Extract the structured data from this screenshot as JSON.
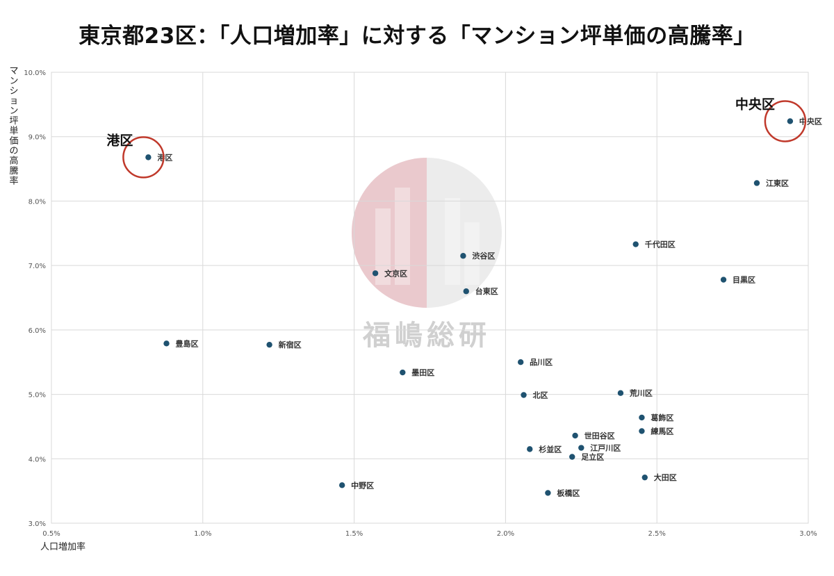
{
  "title": "東京都23区：「人口増加率」に対する「マンション坪単価の高騰率」",
  "watermark": "福嶋総研",
  "colors": {
    "point": "#1f5270",
    "grid": "#d9d9d9",
    "highlight": "#c0392b",
    "watermark_red": "#e8a0a8",
    "watermark_gray": "#c8c8c8"
  },
  "callouts": [
    {
      "target": "港区",
      "text": "港区"
    },
    {
      "target": "中央区",
      "text": "中央区"
    }
  ],
  "chart_data": {
    "type": "scatter",
    "xlabel": "人口増加率",
    "ylabel": "マンション坪単価の高騰率",
    "xlim": [
      0.5,
      3.0
    ],
    "ylim": [
      3.0,
      10.0
    ],
    "xticks": [
      0.5,
      1.0,
      1.5,
      2.0,
      2.5,
      3.0
    ],
    "yticks": [
      3.0,
      4.0,
      5.0,
      6.0,
      7.0,
      8.0,
      9.0,
      10.0
    ],
    "xtick_labels": [
      "0.5%",
      "1.0%",
      "1.5%",
      "2.0%",
      "2.5%",
      "3.0%"
    ],
    "ytick_labels": [
      "3.0%",
      "4.0%",
      "5.0%",
      "6.0%",
      "7.0%",
      "8.0%",
      "9.0%",
      "10.0%"
    ],
    "grid": true,
    "points": [
      {
        "label": "港区",
        "x": 0.82,
        "y": 8.68
      },
      {
        "label": "中央区",
        "x": 2.94,
        "y": 9.24
      },
      {
        "label": "江東区",
        "x": 2.83,
        "y": 8.28
      },
      {
        "label": "千代田区",
        "x": 2.43,
        "y": 7.33
      },
      {
        "label": "渋谷区",
        "x": 1.86,
        "y": 7.15
      },
      {
        "label": "文京区",
        "x": 1.57,
        "y": 6.88
      },
      {
        "label": "目黒区",
        "x": 2.72,
        "y": 6.78
      },
      {
        "label": "台東区",
        "x": 1.87,
        "y": 6.6
      },
      {
        "label": "豊島区",
        "x": 0.88,
        "y": 5.79
      },
      {
        "label": "新宿区",
        "x": 1.22,
        "y": 5.77
      },
      {
        "label": "品川区",
        "x": 2.05,
        "y": 5.5
      },
      {
        "label": "墨田区",
        "x": 1.66,
        "y": 5.34
      },
      {
        "label": "荒川区",
        "x": 2.38,
        "y": 5.02
      },
      {
        "label": "北区",
        "x": 2.06,
        "y": 4.99
      },
      {
        "label": "葛飾区",
        "x": 2.45,
        "y": 4.64
      },
      {
        "label": "練馬区",
        "x": 2.45,
        "y": 4.43
      },
      {
        "label": "世田谷区",
        "x": 2.23,
        "y": 4.36
      },
      {
        "label": "江戸川区",
        "x": 2.25,
        "y": 4.17
      },
      {
        "label": "杉並区",
        "x": 2.08,
        "y": 4.15
      },
      {
        "label": "足立区",
        "x": 2.22,
        "y": 4.03
      },
      {
        "label": "大田区",
        "x": 2.46,
        "y": 3.71
      },
      {
        "label": "中野区",
        "x": 1.46,
        "y": 3.59
      },
      {
        "label": "板橋区",
        "x": 2.14,
        "y": 3.47
      }
    ]
  }
}
